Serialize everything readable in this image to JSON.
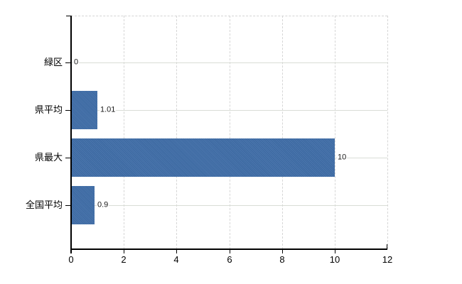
{
  "chart_data": {
    "type": "bar",
    "orientation": "horizontal",
    "title": "",
    "xlabel": "",
    "ylabel": "",
    "categories": [
      "緑区",
      "県平均",
      "県最大",
      "全国平均"
    ],
    "values": [
      0,
      1.01,
      10,
      0.9
    ],
    "value_labels": [
      "0",
      "1.01",
      "10",
      "0.9"
    ],
    "xlim": [
      0,
      12
    ],
    "x_ticks": [
      0,
      2,
      4,
      6,
      8,
      10,
      12
    ],
    "x_tick_labels": [
      "0",
      "2",
      "4",
      "6",
      "8",
      "10",
      "12"
    ],
    "grid": true,
    "legend": false,
    "bar_color": "#3e6da8",
    "grid_color_vertical": "#d6d6d6",
    "grid_color_horizontal": "#d9ddd6",
    "axis_color": "#000000",
    "background_color": "#ffffff"
  }
}
